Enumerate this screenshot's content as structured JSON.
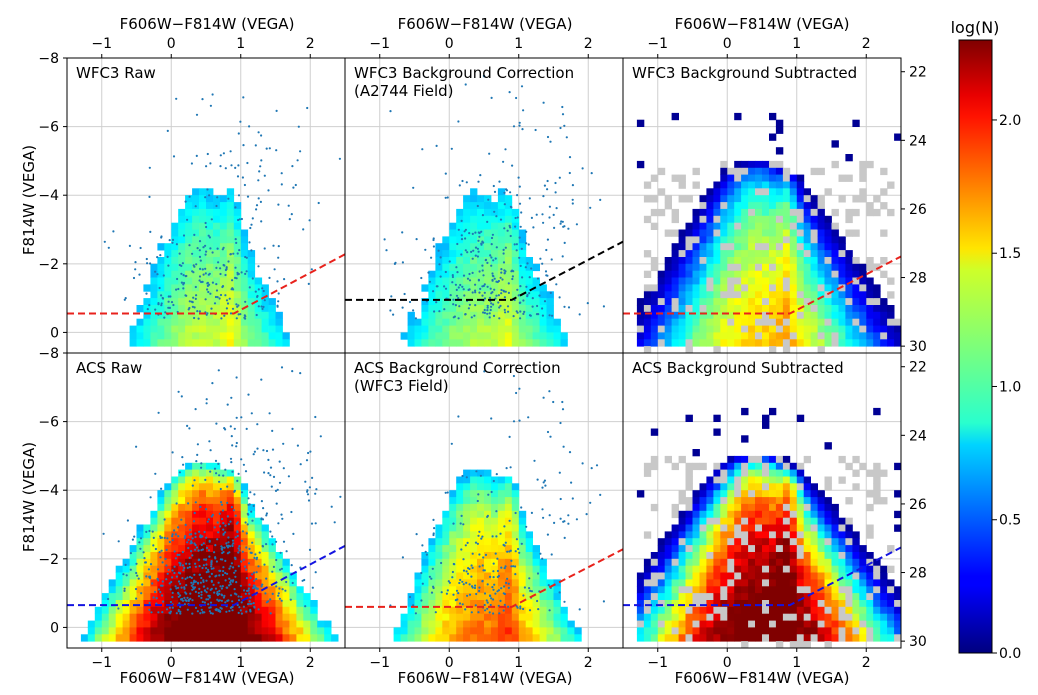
{
  "figure": {
    "colorbar_title": "log(N)",
    "colorbar_ticks": [
      "0.0",
      "0.5",
      "1.0",
      "1.5",
      "2.0"
    ],
    "colorbar_tick_values": [
      0.0,
      0.5,
      1.0,
      1.5,
      2.0
    ],
    "colorbar_range": [
      0.0,
      2.3
    ],
    "x_tick_labels": [
      "−1",
      "0",
      "1",
      "2"
    ],
    "x_tick_values": [
      -1,
      0,
      1,
      2
    ],
    "y_tick_labels": [
      "−8",
      "−6",
      "−4",
      "−2",
      "0"
    ],
    "y_tick_values": [
      -8,
      -6,
      -4,
      -2,
      0
    ],
    "right_tick_labels": [
      "22",
      "24",
      "26",
      "28",
      "30"
    ],
    "right_tick_values": [
      22,
      24,
      26,
      28,
      30
    ],
    "top_xlabel": "F606W−F814W (VEGA)",
    "bottom_xlabel": "F606W−F814W (VEGA)",
    "ylabel": "F814W (VEGA)",
    "xlim": [
      -1.5,
      2.5
    ],
    "ylim": [
      -8,
      0.6
    ],
    "apparent_offset": 29.6,
    "colors": {
      "scatter": "#1f77b4",
      "red_line": "#e8221c",
      "blue_line": "#1414e0",
      "black_line": "#000000",
      "gray_bin": "#c8c8c8"
    }
  },
  "chart_data": [
    {
      "type": "heatmap",
      "title": "WFC3 Raw",
      "title_line2": "",
      "row": 0,
      "col": 0,
      "line_color": "red",
      "scatter_n": 320,
      "density": 1.0,
      "spread": 0.7,
      "max_log": 1.35,
      "vmin": 0.0,
      "xlim": [
        -1.5,
        2.5
      ],
      "ylim": [
        -8,
        0.6
      ],
      "line": {
        "x0": -1.5,
        "x1": 2.5,
        "y_flat": -0.55,
        "x_knee": 0.9,
        "slope": -1.08
      }
    },
    {
      "type": "heatmap",
      "title": "WFC3 Background Correction",
      "title_line2": " (A2744 Field)",
      "row": 0,
      "col": 1,
      "line_color": "black",
      "scatter_n": 380,
      "density": 1.0,
      "spread": 0.75,
      "max_log": 1.3,
      "vmin": 0.0,
      "xlim": [
        -1.5,
        2.5
      ],
      "ylim": [
        -8,
        0.6
      ],
      "line": {
        "x0": -1.5,
        "x1": 2.5,
        "y_flat": -0.95,
        "x_knee": 0.9,
        "slope": -1.06
      }
    },
    {
      "type": "heatmap",
      "title": "WFC3 Background Subtracted",
      "title_line2": "",
      "row": 0,
      "col": 2,
      "line_color": "red",
      "scatter_n": 0,
      "density": 1.0,
      "spread": 0.8,
      "max_log": 1.6,
      "vmin": 0.0,
      "xlim": [
        -1.5,
        2.5
      ],
      "ylim": [
        -8,
        0.6
      ],
      "line": {
        "x0": -1.5,
        "x1": 2.5,
        "y_flat": -0.55,
        "x_knee": 0.9,
        "slope": -1.04
      }
    },
    {
      "type": "heatmap",
      "title": "ACS Raw",
      "title_line2": "",
      "row": 1,
      "col": 0,
      "line_color": "blue",
      "scatter_n": 700,
      "density": 2.2,
      "spread": 0.85,
      "max_log": 2.3,
      "vmin": 0.0,
      "xlim": [
        -1.5,
        2.5
      ],
      "ylim": [
        -8,
        0.6
      ],
      "line": {
        "x0": -1.5,
        "x1": 2.5,
        "y_flat": -0.65,
        "x_knee": 0.9,
        "slope": -1.08
      }
    },
    {
      "type": "heatmap",
      "title": "ACS Background Correction",
      "title_line2": " (WFC3 Field)",
      "row": 1,
      "col": 1,
      "line_color": "red",
      "scatter_n": 260,
      "density": 1.2,
      "spread": 0.7,
      "max_log": 1.75,
      "vmin": 0.0,
      "xlim": [
        -1.5,
        2.5
      ],
      "ylim": [
        -8,
        0.6
      ],
      "line": {
        "x0": -1.5,
        "x1": 2.5,
        "y_flat": -0.6,
        "x_knee": 0.9,
        "slope": -1.05
      }
    },
    {
      "type": "heatmap",
      "title": "ACS Background Subtracted",
      "title_line2": "",
      "row": 1,
      "col": 2,
      "line_color": "blue",
      "scatter_n": 0,
      "density": 2.1,
      "spread": 0.9,
      "max_log": 2.25,
      "vmin": 0.0,
      "xlim": [
        -1.5,
        2.5
      ],
      "ylim": [
        -8,
        0.6
      ],
      "line": {
        "x0": -1.5,
        "x1": 2.5,
        "y_flat": -0.65,
        "x_knee": 0.9,
        "slope": -1.05
      }
    }
  ]
}
